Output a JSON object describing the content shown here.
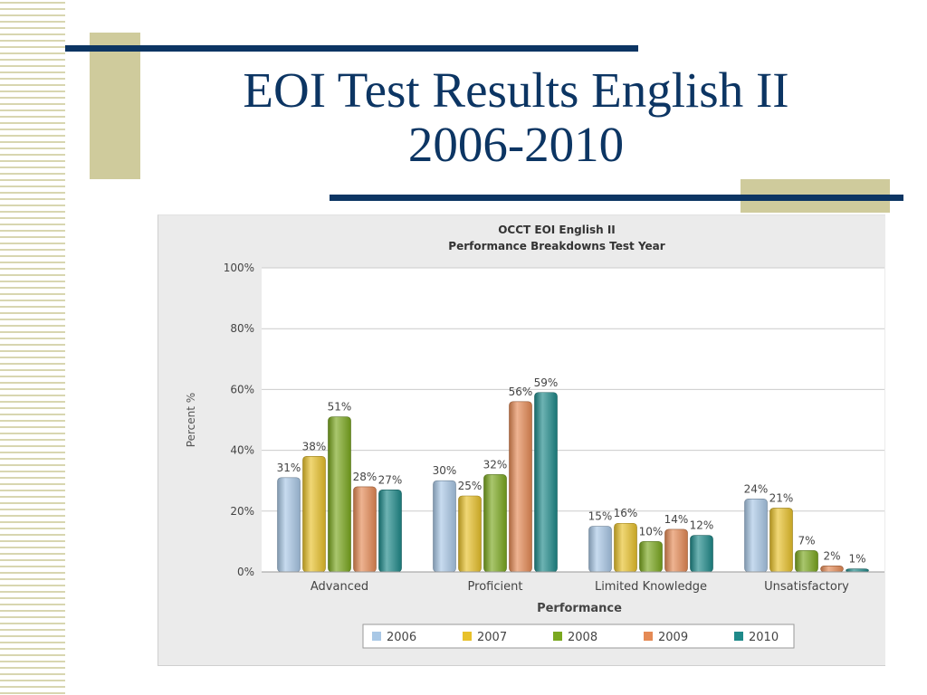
{
  "slide": {
    "title_line1": "EOI Test Results English II",
    "title_line2": "2006-2010"
  },
  "chart_data": {
    "type": "bar",
    "title": "OCCT EOI English II",
    "subtitle": "Performance Breakdowns Test Year",
    "xlabel": "Performance",
    "ylabel": "Percent %",
    "ylim": [
      0,
      100
    ],
    "yticks": [
      "0%",
      "20%",
      "40%",
      "60%",
      "80%",
      "100%"
    ],
    "yticks_values": [
      0,
      20,
      40,
      60,
      80,
      100
    ],
    "grid": true,
    "legend_position": "bottom",
    "categories": [
      "Advanced",
      "Proficient",
      "Limited Knowledge",
      "Unsatisfactory"
    ],
    "series": [
      {
        "name": "2006",
        "color": "#a9c8e6",
        "values": [
          31,
          30,
          15,
          24
        ],
        "labels": [
          "31%",
          "30%",
          "15%",
          "24%"
        ]
      },
      {
        "name": "2007",
        "color": "#e8c12a",
        "values": [
          38,
          25,
          16,
          21
        ],
        "labels": [
          "38%",
          "25%",
          "16%",
          "21%"
        ]
      },
      {
        "name": "2008",
        "color": "#7aa81f",
        "values": [
          51,
          32,
          10,
          7
        ],
        "labels": [
          "51%",
          "32%",
          "10%",
          "7%"
        ]
      },
      {
        "name": "2009",
        "color": "#e58a55",
        "values": [
          28,
          56,
          14,
          2
        ],
        "labels": [
          "28%",
          "56%",
          "14%",
          "2%"
        ]
      },
      {
        "name": "2010",
        "color": "#1f8a8a",
        "values": [
          27,
          59,
          12,
          1
        ],
        "labels": [
          "27%",
          "59%",
          "12%",
          "1%"
        ]
      }
    ]
  }
}
